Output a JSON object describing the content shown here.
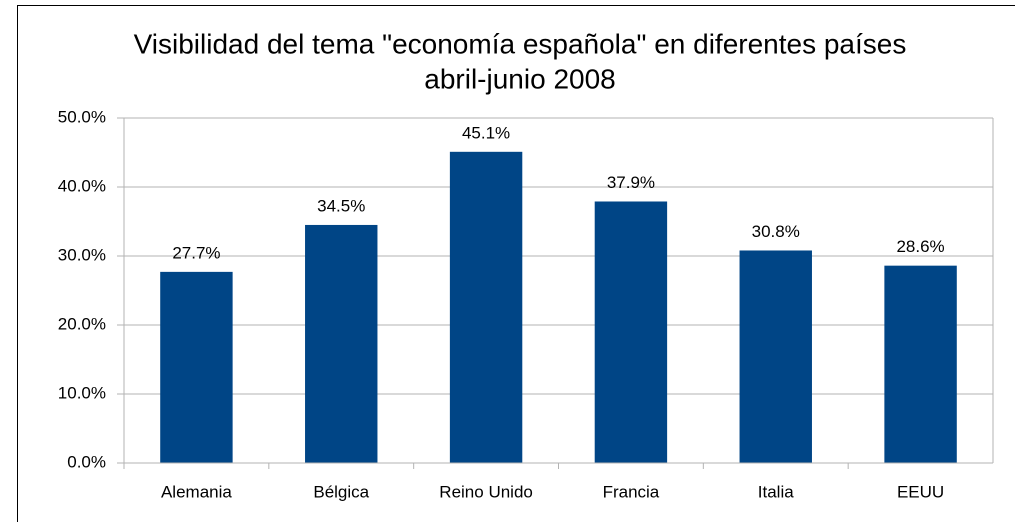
{
  "chart_data": {
    "type": "bar",
    "title": "Visibilidad del tema \"economía española\" en diferentes países",
    "subtitle": "abril-junio 2008",
    "categories": [
      "Alemania",
      "Bélgica",
      "Reino Unido",
      "Francia",
      "Italia",
      "EEUU"
    ],
    "values": [
      27.7,
      34.5,
      45.1,
      37.9,
      30.8,
      28.6
    ],
    "value_labels": [
      "27.7%",
      "34.5%",
      "45.1%",
      "37.9%",
      "30.8%",
      "28.6%"
    ],
    "color": "#004586",
    "ylim": [
      0,
      50
    ],
    "yticks": [
      {
        "value": 0,
        "label": "0.0%"
      },
      {
        "value": 10,
        "label": "10.0%"
      },
      {
        "value": 20,
        "label": "20.0%"
      },
      {
        "value": 30,
        "label": "30.0%"
      },
      {
        "value": 40,
        "label": "40.0%"
      },
      {
        "value": 50,
        "label": "50.0%"
      }
    ],
    "grid": true
  }
}
